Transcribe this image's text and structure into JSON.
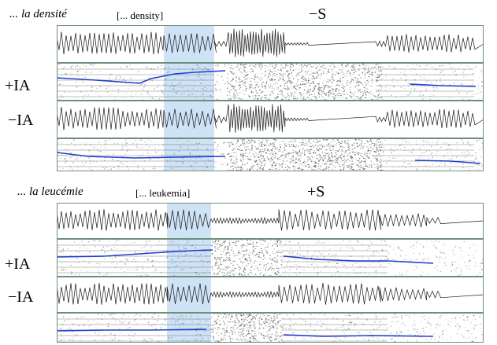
{
  "colors": {
    "highlight": "#cfe3f7",
    "pitch_contour": "#1f3fcf",
    "waveform": "#1a1a1a",
    "frame": "#6d8f7a"
  },
  "top_block": {
    "phrase": "... la densité",
    "gloss": "[... density]",
    "condition": "−S",
    "rows": [
      {
        "label": "+IA"
      },
      {
        "label": "−IA"
      }
    ]
  },
  "bottom_block": {
    "phrase": "... la leucémie",
    "gloss": "[... leukemia]",
    "condition": "+S",
    "rows": [
      {
        "label": "+IA"
      },
      {
        "label": "−IA"
      }
    ]
  }
}
